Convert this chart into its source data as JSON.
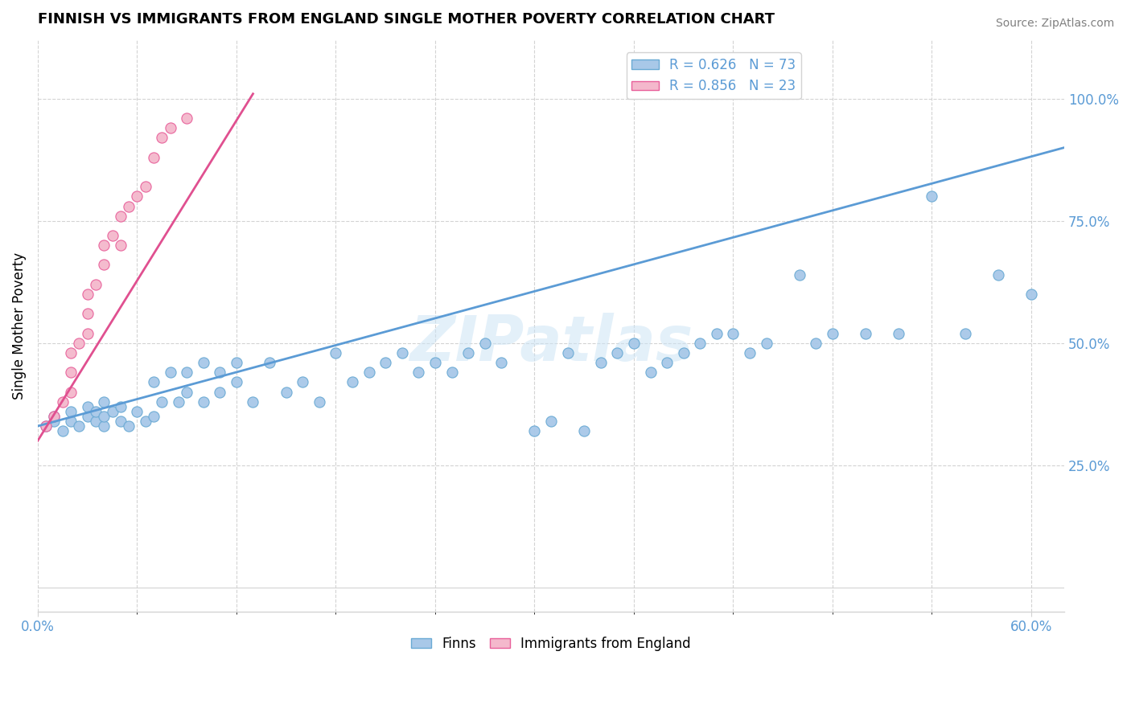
{
  "title": "FINNISH VS IMMIGRANTS FROM ENGLAND SINGLE MOTHER POVERTY CORRELATION CHART",
  "source": "Source: ZipAtlas.com",
  "ylabel": "Single Mother Poverty",
  "xlim": [
    0.0,
    0.62
  ],
  "ylim": [
    -0.05,
    1.12
  ],
  "finns_R": 0.626,
  "finns_N": 73,
  "immigrants_R": 0.856,
  "immigrants_N": 23,
  "finns_color": "#a8c8e8",
  "immigrants_color": "#f4b8cc",
  "finns_edge_color": "#6aaad4",
  "immigrants_edge_color": "#e8609a",
  "finns_line_color": "#5b9bd5",
  "immigrants_line_color": "#e05090",
  "legend_R_color": "#5b9bd5",
  "watermark": "ZIPatlas",
  "finns_x": [
    0.005,
    0.01,
    0.01,
    0.015,
    0.02,
    0.02,
    0.025,
    0.03,
    0.03,
    0.035,
    0.035,
    0.04,
    0.04,
    0.04,
    0.045,
    0.05,
    0.05,
    0.055,
    0.06,
    0.065,
    0.07,
    0.07,
    0.075,
    0.08,
    0.085,
    0.09,
    0.09,
    0.1,
    0.1,
    0.11,
    0.11,
    0.12,
    0.12,
    0.13,
    0.14,
    0.15,
    0.16,
    0.17,
    0.18,
    0.19,
    0.2,
    0.21,
    0.22,
    0.23,
    0.24,
    0.25,
    0.26,
    0.27,
    0.28,
    0.3,
    0.31,
    0.32,
    0.33,
    0.34,
    0.35,
    0.36,
    0.37,
    0.38,
    0.39,
    0.4,
    0.41,
    0.42,
    0.43,
    0.44,
    0.46,
    0.47,
    0.48,
    0.5,
    0.52,
    0.54,
    0.56,
    0.58,
    0.6
  ],
  "finns_y": [
    0.33,
    0.35,
    0.34,
    0.32,
    0.34,
    0.36,
    0.33,
    0.35,
    0.37,
    0.34,
    0.36,
    0.33,
    0.35,
    0.38,
    0.36,
    0.34,
    0.37,
    0.33,
    0.36,
    0.34,
    0.42,
    0.35,
    0.38,
    0.44,
    0.38,
    0.4,
    0.44,
    0.38,
    0.46,
    0.4,
    0.44,
    0.42,
    0.46,
    0.38,
    0.46,
    0.4,
    0.42,
    0.38,
    0.48,
    0.42,
    0.44,
    0.46,
    0.48,
    0.44,
    0.46,
    0.44,
    0.48,
    0.5,
    0.46,
    0.32,
    0.34,
    0.48,
    0.32,
    0.46,
    0.48,
    0.5,
    0.44,
    0.46,
    0.48,
    0.5,
    0.52,
    0.52,
    0.48,
    0.5,
    0.64,
    0.5,
    0.52,
    0.52,
    0.52,
    0.8,
    0.52,
    0.64,
    0.6
  ],
  "immigrants_x": [
    0.005,
    0.01,
    0.015,
    0.02,
    0.02,
    0.02,
    0.025,
    0.03,
    0.03,
    0.03,
    0.035,
    0.04,
    0.04,
    0.045,
    0.05,
    0.05,
    0.055,
    0.06,
    0.065,
    0.07,
    0.075,
    0.08,
    0.09
  ],
  "immigrants_y": [
    0.33,
    0.35,
    0.38,
    0.4,
    0.44,
    0.48,
    0.5,
    0.52,
    0.56,
    0.6,
    0.62,
    0.66,
    0.7,
    0.72,
    0.7,
    0.76,
    0.78,
    0.8,
    0.82,
    0.88,
    0.92,
    0.94,
    0.96
  ],
  "finns_line_x": [
    0.0,
    0.62
  ],
  "finns_line_y": [
    0.33,
    0.9
  ],
  "immigrants_line_x": [
    0.0,
    0.13
  ],
  "immigrants_line_y": [
    0.3,
    1.01
  ]
}
